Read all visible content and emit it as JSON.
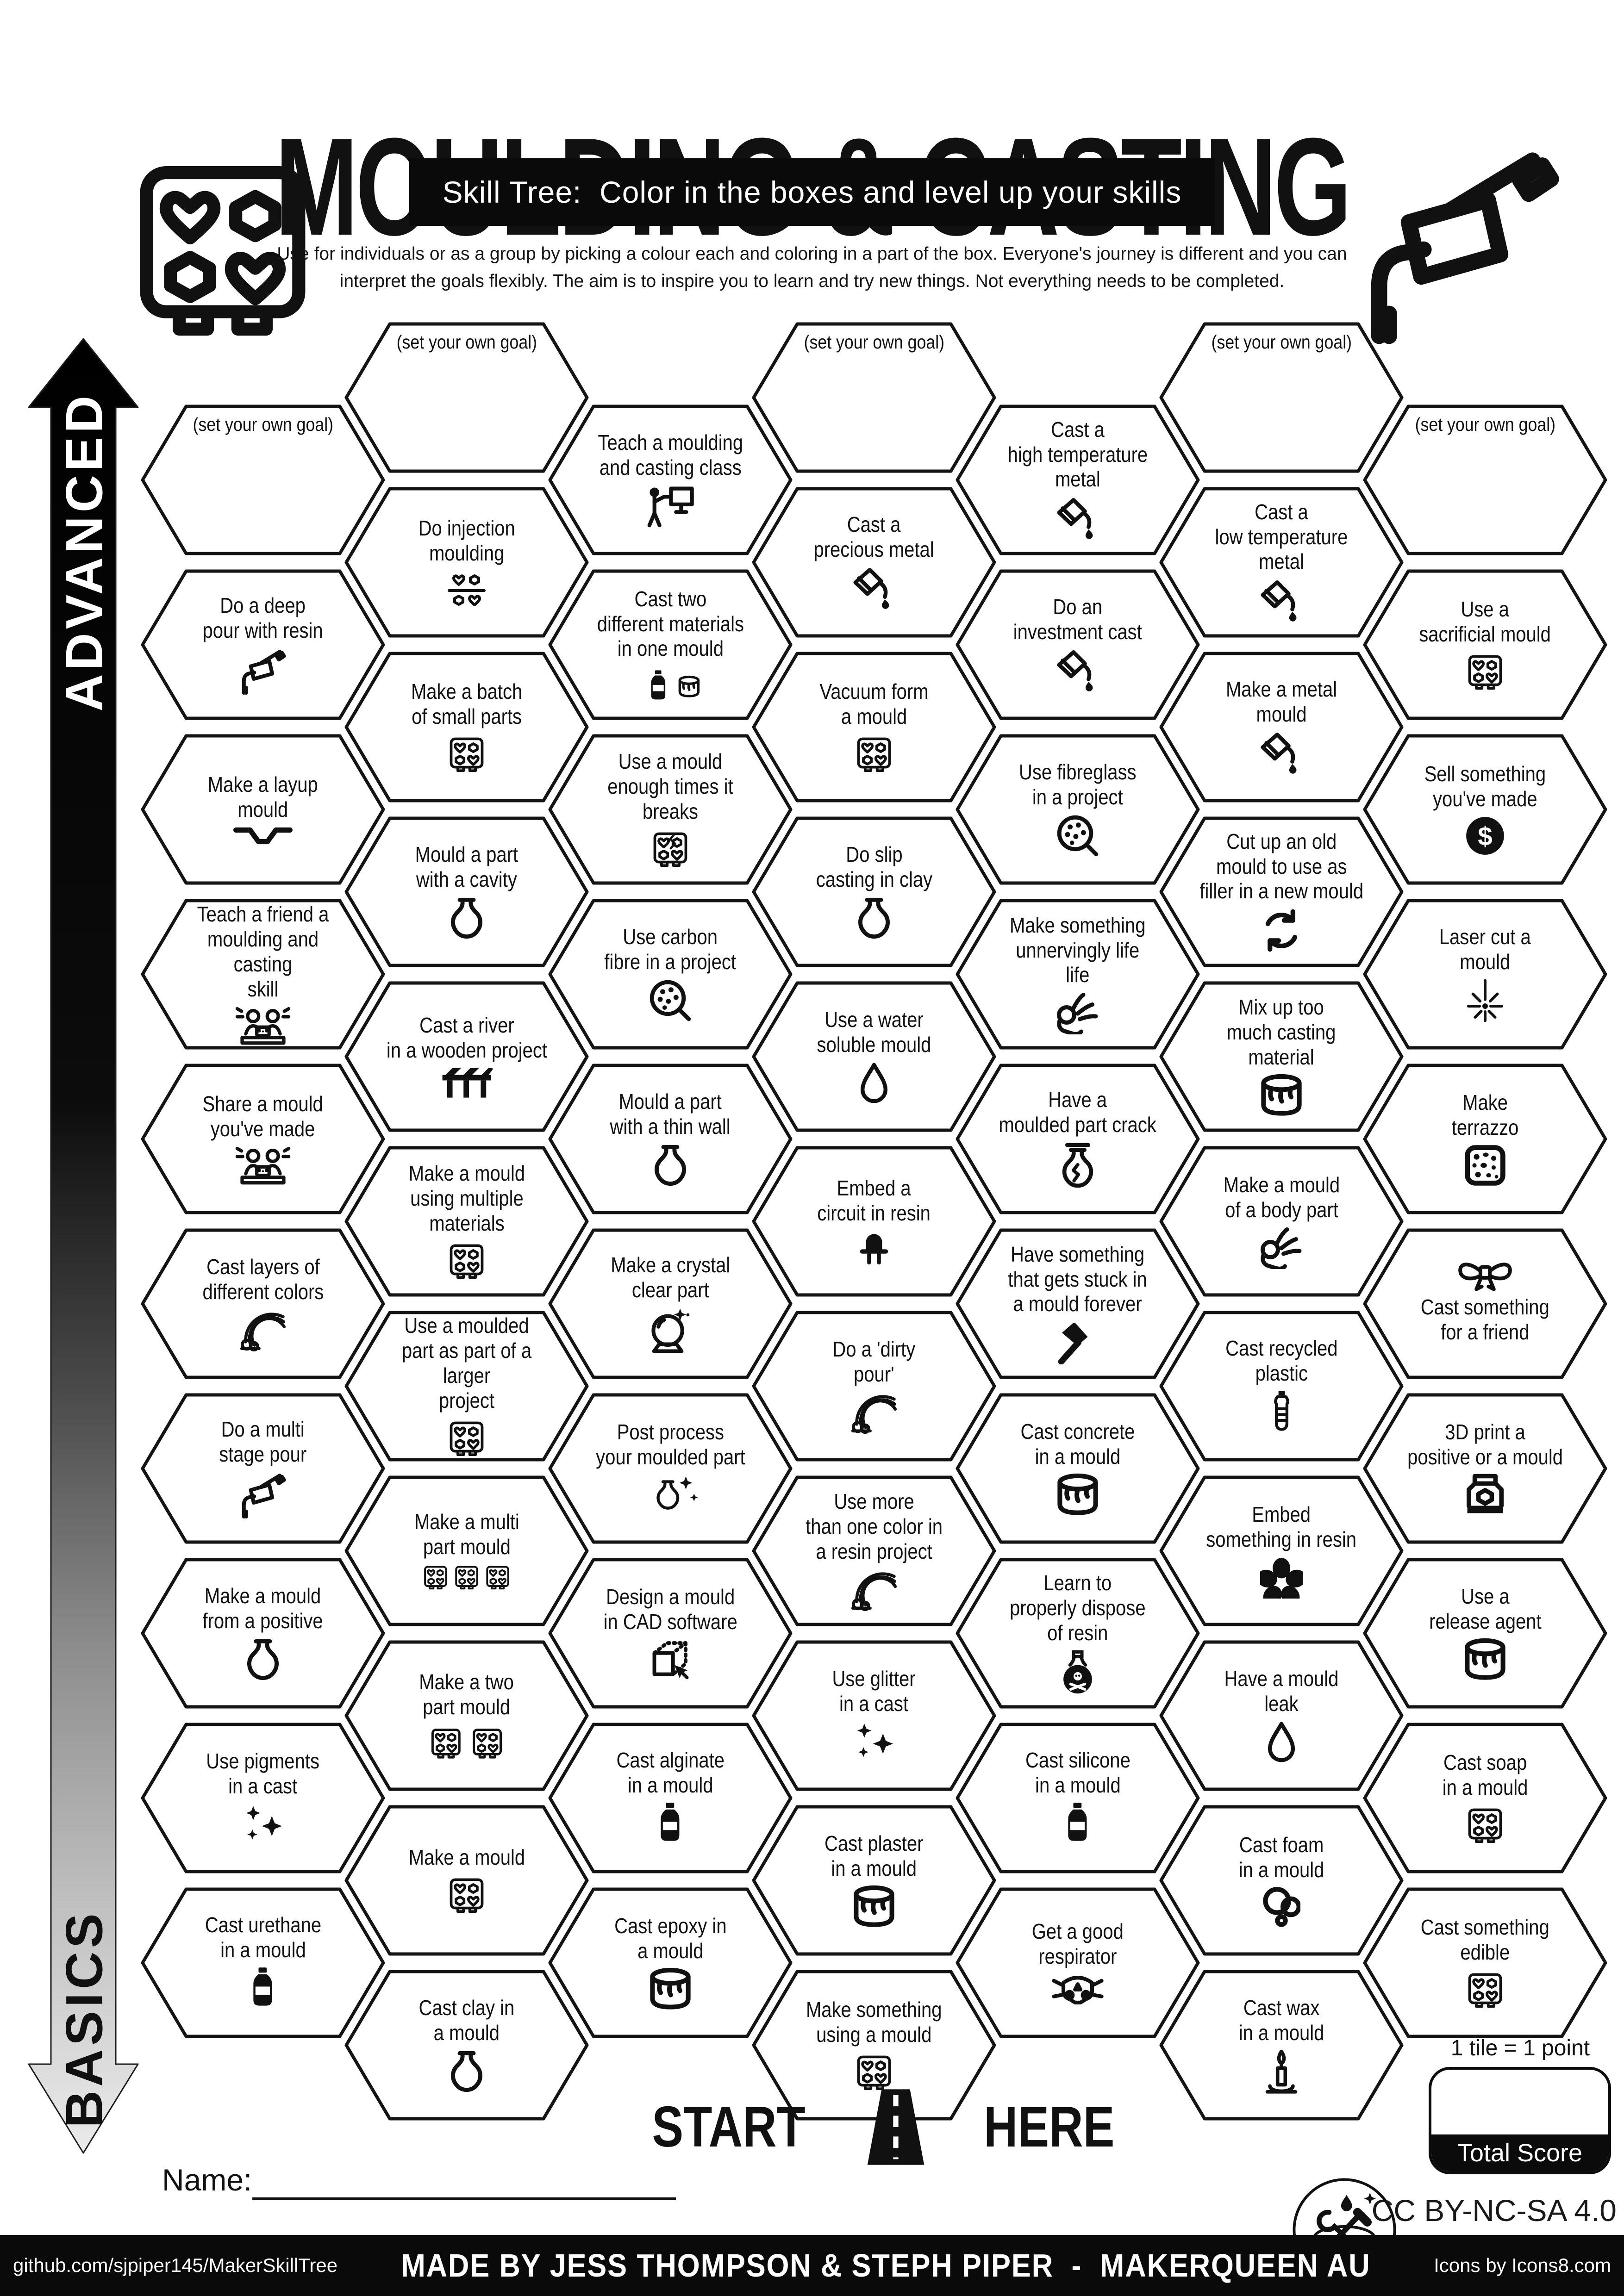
{
  "header": {
    "title": "MOULDING & CASTING",
    "subtitle": "Skill Tree:  Color in the boxes and level up your skills",
    "description_line1": "Use for individuals or as a group by picking a colour each and coloring in a part of the box.  Everyone's journey is different and you can",
    "description_line2": "interpret the goals flexibly.  The aim is to inspire you to learn and try new things. Not everything needs to be completed."
  },
  "axis": {
    "top_label": "ADVANCED",
    "bottom_label": "BASICS"
  },
  "colors": {
    "ink": "#111111",
    "paper": "#ffffff",
    "bar": "#0a0a0a"
  },
  "columns": [
    {
      "tiles": [
        {
          "label": "(set your own goal)",
          "goal": true
        },
        {
          "label": "Do a deep\npour with resin",
          "icon": "caulking-gun"
        },
        {
          "label": "Make a layup\nmould",
          "icon": "layup-channel"
        },
        {
          "label": "Teach a friend a\nmoulding and casting\nskill",
          "icon": "people-laptop"
        },
        {
          "label": "Share a mould\nyou've made",
          "icon": "people-laptop"
        },
        {
          "label": "Cast layers of\ndifferent colors",
          "icon": "rainbow"
        },
        {
          "label": "Do a multi\nstage pour",
          "icon": "caulking-gun"
        },
        {
          "label": "Make a mould\nfrom a positive",
          "icon": "vase"
        },
        {
          "label": "Use pigments\nin a cast",
          "icon": "sparkles"
        },
        {
          "label": "Cast urethane\nin a mould",
          "icon": "bottle"
        }
      ]
    },
    {
      "tiles": [
        {
          "label": "(set your own goal)",
          "goal": true
        },
        {
          "label": "Do injection\nmoulding",
          "icon": "injection-mould"
        },
        {
          "label": "Make a batch\nof small parts",
          "icon": "mould-tray"
        },
        {
          "label": "Mould a part\nwith a cavity",
          "icon": "vase"
        },
        {
          "label": "Cast a river\nin a wooden project",
          "icon": "river-table"
        },
        {
          "label": "Make a mould\nusing multiple\nmaterials",
          "icon": "mould-tray"
        },
        {
          "label": "Use a moulded\npart as part of a larger\nproject",
          "icon": "mould-tray"
        },
        {
          "label": "Make a multi\npart mould",
          "icon": "mould-tray-x3"
        },
        {
          "label": "Make a two\npart mould",
          "icon": "mould-tray-x2"
        },
        {
          "label": "Make a mould",
          "icon": "mould-tray"
        },
        {
          "label": "Cast clay in\na mould",
          "icon": "vase"
        }
      ]
    },
    {
      "tiles": [
        {
          "label": "Teach a moulding\nand casting class",
          "icon": "teacher-board"
        },
        {
          "label": "Cast two\ndifferent materials\nin one mould",
          "icon": "bottle-bucket"
        },
        {
          "label": "Use a mould\nenough times it\nbreaks",
          "icon": "mould-broken"
        },
        {
          "label": "Use carbon\nfibre in a project",
          "icon": "fibre-magnifier"
        },
        {
          "label": "Mould a part\nwith a thin wall",
          "icon": "vase"
        },
        {
          "label": "Make a crystal\nclear part",
          "icon": "crystal-ball"
        },
        {
          "label": "Post process\nyour moulded part",
          "icon": "vase-sparkles"
        },
        {
          "label": "Design a mould\nin CAD software",
          "icon": "cad-cube"
        },
        {
          "label": "Cast alginate\nin a mould",
          "icon": "bottle"
        },
        {
          "label": "Cast epoxy in\na mould",
          "icon": "bucket"
        }
      ]
    },
    {
      "tiles": [
        {
          "label": "(set your own goal)",
          "goal": true
        },
        {
          "label": "Cast a\nprecious metal",
          "icon": "crucible-pour"
        },
        {
          "label": "Vacuum form\na mould",
          "icon": "mould-tray"
        },
        {
          "label": "Do slip\ncasting in clay",
          "icon": "vase"
        },
        {
          "label": "Use a water\nsoluble mould",
          "icon": "drop"
        },
        {
          "label": "Embed a\ncircuit in resin",
          "icon": "led"
        },
        {
          "label": "Do a 'dirty\npour'",
          "icon": "rainbow"
        },
        {
          "label": "Use more\nthan one color in\na resin project",
          "icon": "rainbow"
        },
        {
          "label": "Use glitter\nin a cast",
          "icon": "sparkles"
        },
        {
          "label": "Cast plaster\nin a mould",
          "icon": "bucket"
        },
        {
          "label": "Make something\nusing a mould",
          "icon": "mould-tray"
        }
      ]
    },
    {
      "tiles": [
        {
          "label": "Cast a\nhigh temperature\nmetal",
          "icon": "crucible-pour"
        },
        {
          "label": "Do an\ninvestment cast",
          "icon": "crucible-pour"
        },
        {
          "label": "Use fibreglass\nin a project",
          "icon": "fibre-magnifier"
        },
        {
          "label": "Make something\nunnervingly life\nlife",
          "icon": "ok-hand"
        },
        {
          "label": "Have a\nmoulded part crack",
          "icon": "vase-crack"
        },
        {
          "label": "Have something\nthat gets stuck in\na mould forever",
          "icon": "hammer"
        },
        {
          "label": "Cast concrete\nin a mould",
          "icon": "bucket"
        },
        {
          "label": "Learn to\nproperly dispose\nof resin",
          "icon": "poison-bottle"
        },
        {
          "label": "Cast silicone\nin a mould",
          "icon": "bottle"
        },
        {
          "label": "Get a good\nrespirator",
          "icon": "respirator"
        }
      ]
    },
    {
      "tiles": [
        {
          "label": "(set your own goal)",
          "goal": true
        },
        {
          "label": "Cast a\nlow temperature\nmetal",
          "icon": "crucible-pour"
        },
        {
          "label": "Make a metal\nmould",
          "icon": "crucible-pour"
        },
        {
          "label": "Cut up an old\nmould to use as\nfiller in a new mould",
          "icon": "recycle"
        },
        {
          "label": "Mix up too\nmuch casting\nmaterial",
          "icon": "bucket"
        },
        {
          "label": "Make a mould\nof a body part",
          "icon": "ok-hand"
        },
        {
          "label": "Cast recycled\nplastic",
          "icon": "plastic-bottle"
        },
        {
          "label": "Embed\nsomething in resin",
          "icon": "flower"
        },
        {
          "label": "Have a mould\nleak",
          "icon": "drop"
        },
        {
          "label": "Cast foam\nin a mould",
          "icon": "bubbles"
        },
        {
          "label": "Cast wax\nin a mould",
          "icon": "candle"
        }
      ]
    },
    {
      "tiles": [
        {
          "label": "(set your own goal)",
          "goal": true
        },
        {
          "label": "Use a\nsacrificial mould",
          "icon": "mould-tray"
        },
        {
          "label": "Sell something\nyou've made",
          "icon": "dollar-coin"
        },
        {
          "label": "Laser cut a\nmould",
          "icon": "laser-burst"
        },
        {
          "label": "Make\nterrazzo",
          "icon": "terrazzo"
        },
        {
          "label": "Cast something\nfor a friend",
          "icon": "bow",
          "icon_pos": "top"
        },
        {
          "label": "3D print a\npositive or a mould",
          "icon": "printer-3d"
        },
        {
          "label": "Use a\nrelease agent",
          "icon": "bucket"
        },
        {
          "label": "Cast soap\nin a mould",
          "icon": "mould-tray"
        },
        {
          "label": "Cast something\nedible",
          "icon": "mould-tray"
        }
      ]
    }
  ],
  "start_here": {
    "left_word": "START",
    "right_word": "HERE"
  },
  "name_field": {
    "label": "Name:"
  },
  "score": {
    "note": "1 tile = 1 point",
    "box_label": "Total Score"
  },
  "license": "CC BY-NC-SA 4.0",
  "footer": {
    "left": "github.com/sjpiper145/MakerSkillTree",
    "center": "MADE BY JESS THOMPSON & STEPH PIPER  -  MAKERQUEEN AU",
    "right": "Icons by Icons8.com"
  }
}
